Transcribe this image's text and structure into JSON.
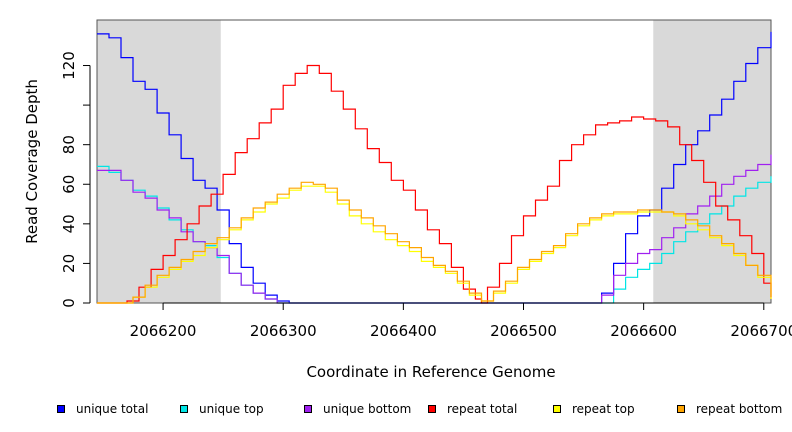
{
  "chart_data": {
    "type": "line",
    "title": "",
    "xlabel": "Coordinate in Reference Genome",
    "ylabel": "Read Coverage Depth",
    "xlim": [
      2066145,
      2066706
    ],
    "ylim": [
      0,
      143
    ],
    "x_ticks": [
      2066200,
      2066300,
      2066400,
      2066500,
      2066600,
      2066700
    ],
    "x_tick_labels": [
      "2066200",
      "2066300",
      "2066400",
      "2066500",
      "2066600",
      "2066700"
    ],
    "y_ticks": [
      0,
      20,
      40,
      60,
      80,
      100,
      120
    ],
    "y_tick_labels": [
      "0",
      "20",
      "40",
      "60",
      "80",
      "",
      "120"
    ],
    "shaded_regions": [
      [
        2066145,
        2066248
      ],
      [
        2066608,
        2066706
      ]
    ],
    "shade_color": "#d9d9d9",
    "series": [
      {
        "name": "unique total",
        "color": "#0000ff",
        "x": [
          2066145,
          2066155,
          2066165,
          2066175,
          2066185,
          2066195,
          2066205,
          2066215,
          2066225,
          2066235,
          2066245,
          2066255,
          2066265,
          2066275,
          2066285,
          2066295,
          2066305,
          2066560,
          2066565,
          2066575,
          2066585,
          2066595,
          2066605,
          2066615,
          2066625,
          2066635,
          2066645,
          2066655,
          2066665,
          2066675,
          2066685,
          2066695,
          2066706
        ],
        "y": [
          136,
          134,
          124,
          112,
          108,
          96,
          85,
          73,
          62,
          58,
          47,
          30,
          18,
          10,
          4,
          1,
          0,
          0,
          5,
          20,
          35,
          44,
          47,
          58,
          70,
          80,
          87,
          95,
          103,
          112,
          121,
          129,
          137
        ]
      },
      {
        "name": "unique top",
        "color": "#00e5e5",
        "x": [
          2066145,
          2066155,
          2066165,
          2066175,
          2066185,
          2066195,
          2066205,
          2066215,
          2066225,
          2066235,
          2066245,
          2066255,
          2066265,
          2066275,
          2066285,
          2066295,
          2066305,
          2066565,
          2066575,
          2066585,
          2066595,
          2066605,
          2066615,
          2066625,
          2066635,
          2066645,
          2066655,
          2066665,
          2066675,
          2066685,
          2066695,
          2066706
        ],
        "y": [
          69,
          66,
          62,
          57,
          54,
          48,
          42,
          37,
          31,
          29,
          23,
          15,
          9,
          5,
          2,
          0,
          0,
          0,
          7,
          13,
          17,
          20,
          25,
          31,
          36,
          40,
          45,
          49,
          54,
          58,
          61,
          64
        ]
      },
      {
        "name": "unique bottom",
        "color": "#a020f0",
        "x": [
          2066145,
          2066155,
          2066165,
          2066175,
          2066185,
          2066195,
          2066205,
          2066215,
          2066225,
          2066235,
          2066245,
          2066255,
          2066265,
          2066275,
          2066285,
          2066295,
          2066305,
          2066560,
          2066565,
          2066575,
          2066585,
          2066595,
          2066605,
          2066615,
          2066625,
          2066635,
          2066645,
          2066655,
          2066665,
          2066675,
          2066685,
          2066695,
          2066706
        ],
        "y": [
          67,
          67,
          62,
          56,
          53,
          47,
          43,
          36,
          31,
          28,
          24,
          15,
          9,
          5,
          2,
          0,
          0,
          0,
          4,
          14,
          20,
          25,
          27,
          33,
          38,
          45,
          49,
          54,
          60,
          64,
          67,
          70,
          75
        ]
      },
      {
        "name": "repeat total",
        "color": "#ff0000",
        "x": [
          2066145,
          2066160,
          2066170,
          2066180,
          2066190,
          2066200,
          2066210,
          2066220,
          2066230,
          2066240,
          2066250,
          2066260,
          2066270,
          2066280,
          2066290,
          2066300,
          2066310,
          2066320,
          2066330,
          2066340,
          2066350,
          2066360,
          2066370,
          2066380,
          2066390,
          2066400,
          2066410,
          2066420,
          2066430,
          2066440,
          2066450,
          2066460,
          2066465,
          2066470,
          2066480,
          2066490,
          2066500,
          2066510,
          2066520,
          2066530,
          2066540,
          2066550,
          2066560,
          2066570,
          2066580,
          2066590,
          2066600,
          2066610,
          2066620,
          2066630,
          2066640,
          2066650,
          2066660,
          2066670,
          2066680,
          2066690,
          2066700,
          2066706
        ],
        "y": [
          0,
          0,
          1,
          8,
          17,
          24,
          32,
          40,
          49,
          55,
          65,
          76,
          83,
          91,
          98,
          110,
          116,
          120,
          116,
          107,
          98,
          88,
          78,
          71,
          62,
          57,
          47,
          37,
          30,
          18,
          7,
          2,
          0,
          8,
          20,
          34,
          44,
          52,
          59,
          72,
          80,
          85,
          90,
          91,
          92,
          94,
          93,
          92,
          89,
          80,
          72,
          61,
          49,
          42,
          34,
          25,
          10,
          2
        ]
      },
      {
        "name": "repeat top",
        "color": "#ffff00",
        "x": [
          2066145,
          2066165,
          2066175,
          2066185,
          2066195,
          2066205,
          2066215,
          2066225,
          2066235,
          2066245,
          2066255,
          2066265,
          2066275,
          2066285,
          2066295,
          2066305,
          2066315,
          2066325,
          2066335,
          2066345,
          2066355,
          2066365,
          2066375,
          2066385,
          2066395,
          2066405,
          2066415,
          2066425,
          2066435,
          2066445,
          2066455,
          2066465,
          2066475,
          2066485,
          2066495,
          2066505,
          2066515,
          2066525,
          2066535,
          2066545,
          2066555,
          2066565,
          2066575,
          2066585,
          2066595,
          2066605,
          2066615,
          2066625,
          2066635,
          2066645,
          2066655,
          2066665,
          2066675,
          2066685,
          2066695,
          2066706
        ],
        "y": [
          0,
          0,
          3,
          8,
          13,
          17,
          21,
          24,
          28,
          32,
          37,
          42,
          46,
          50,
          53,
          57,
          59,
          59,
          56,
          50,
          44,
          40,
          36,
          32,
          29,
          26,
          21,
          18,
          15,
          10,
          4,
          1,
          5,
          10,
          17,
          21,
          25,
          28,
          34,
          39,
          42,
          44,
          45,
          45,
          46,
          46,
          46,
          44,
          40,
          37,
          33,
          29,
          24,
          19,
          13,
          2
        ]
      },
      {
        "name": "repeat bottom",
        "color": "#ffa500",
        "x": [
          2066145,
          2066165,
          2066175,
          2066185,
          2066195,
          2066205,
          2066215,
          2066225,
          2066235,
          2066245,
          2066255,
          2066265,
          2066275,
          2066285,
          2066295,
          2066305,
          2066315,
          2066325,
          2066335,
          2066345,
          2066355,
          2066365,
          2066375,
          2066385,
          2066395,
          2066405,
          2066415,
          2066425,
          2066435,
          2066445,
          2066455,
          2066465,
          2066475,
          2066485,
          2066495,
          2066505,
          2066515,
          2066525,
          2066535,
          2066545,
          2066555,
          2066565,
          2066575,
          2066585,
          2066595,
          2066605,
          2066615,
          2066625,
          2066635,
          2066645,
          2066655,
          2066665,
          2066675,
          2066685,
          2066695,
          2066706
        ],
        "y": [
          0,
          0,
          3,
          9,
          14,
          18,
          22,
          26,
          30,
          33,
          38,
          43,
          48,
          51,
          55,
          58,
          61,
          60,
          58,
          52,
          47,
          43,
          39,
          35,
          31,
          28,
          23,
          19,
          16,
          11,
          5,
          1,
          6,
          11,
          18,
          22,
          26,
          29,
          35,
          40,
          43,
          45,
          46,
          46,
          47,
          47,
          46,
          45,
          42,
          39,
          34,
          30,
          25,
          19,
          14,
          3
        ]
      }
    ]
  },
  "legend": [
    {
      "label": "unique total",
      "color": "#0000ff"
    },
    {
      "label": "unique top",
      "color": "#00e5e5"
    },
    {
      "label": "unique bottom",
      "color": "#a020f0"
    },
    {
      "label": "repeat total",
      "color": "#ff0000"
    },
    {
      "label": "repeat top",
      "color": "#ffff00"
    },
    {
      "label": "repeat bottom",
      "color": "#ffa500"
    }
  ]
}
